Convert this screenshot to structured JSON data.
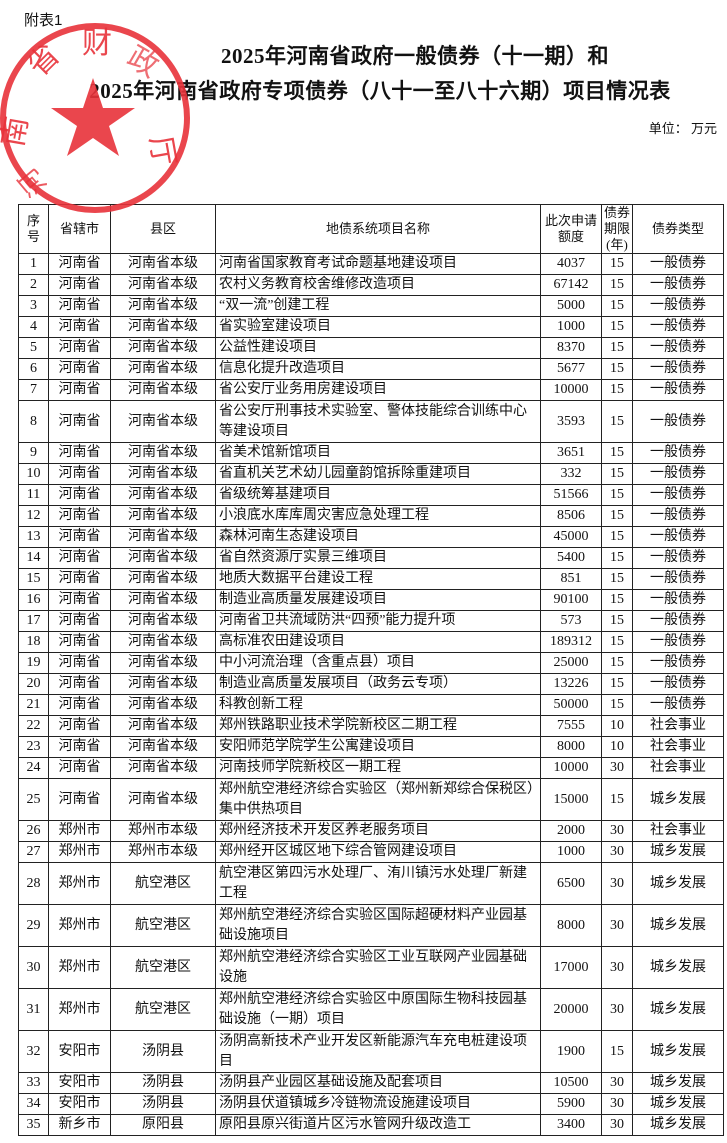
{
  "attachment_label": "附表1",
  "title_line1": "2025年河南省政府一般债券（十一期）和",
  "title_line2": "2025年河南省政府专项债券（八十一至八十六期）项目情况表",
  "unit": "单位：  万元",
  "stamp": {
    "text": "河南省财政厅",
    "color": "#e8323a"
  },
  "headers": [
    "序号",
    "省辖市",
    "县区",
    "地债系统项目名称",
    "此次申请额度",
    "债券期限(年)",
    "债券类型"
  ],
  "rows": [
    [
      "1",
      "河南省",
      "河南省本级",
      "河南省国家教育考试命题基地建设项目",
      "4037",
      "15",
      "一般债券"
    ],
    [
      "2",
      "河南省",
      "河南省本级",
      "农村义务教育校舍维修改造项目",
      "67142",
      "15",
      "一般债券"
    ],
    [
      "3",
      "河南省",
      "河南省本级",
      "“双一流”创建工程",
      "5000",
      "15",
      "一般债券"
    ],
    [
      "4",
      "河南省",
      "河南省本级",
      "省实验室建设项目",
      "1000",
      "15",
      "一般债券"
    ],
    [
      "5",
      "河南省",
      "河南省本级",
      "公益性建设项目",
      "8370",
      "15",
      "一般债券"
    ],
    [
      "6",
      "河南省",
      "河南省本级",
      "信息化提升改造项目",
      "5677",
      "15",
      "一般债券"
    ],
    [
      "7",
      "河南省",
      "河南省本级",
      "省公安厅业务用房建设项目",
      "10000",
      "15",
      "一般债券"
    ],
    [
      "8",
      "河南省",
      "河南省本级",
      "省公安厅刑事技术实验室、警体技能综合训练中心等建设项目",
      "3593",
      "15",
      "一般债券"
    ],
    [
      "9",
      "河南省",
      "河南省本级",
      "省美术馆新馆项目",
      "3651",
      "15",
      "一般债券"
    ],
    [
      "10",
      "河南省",
      "河南省本级",
      "省直机关艺术幼儿园童韵馆拆除重建项目",
      "332",
      "15",
      "一般债券"
    ],
    [
      "11",
      "河南省",
      "河南省本级",
      "省级统筹基建项目",
      "51566",
      "15",
      "一般债券"
    ],
    [
      "12",
      "河南省",
      "河南省本级",
      "小浪底水库库周灾害应急处理工程",
      "8506",
      "15",
      "一般债券"
    ],
    [
      "13",
      "河南省",
      "河南省本级",
      "森林河南生态建设项目",
      "45000",
      "15",
      "一般债券"
    ],
    [
      "14",
      "河南省",
      "河南省本级",
      "省自然资源厅实景三维项目",
      "5400",
      "15",
      "一般债券"
    ],
    [
      "15",
      "河南省",
      "河南省本级",
      "地质大数据平台建设工程",
      "851",
      "15",
      "一般债券"
    ],
    [
      "16",
      "河南省",
      "河南省本级",
      "制造业高质量发展建设项目",
      "90100",
      "15",
      "一般债券"
    ],
    [
      "17",
      "河南省",
      "河南省本级",
      "河南省卫共流域防洪“四预”能力提升项",
      "573",
      "15",
      "一般债券"
    ],
    [
      "18",
      "河南省",
      "河南省本级",
      "高标准农田建设项目",
      "189312",
      "15",
      "一般债券"
    ],
    [
      "19",
      "河南省",
      "河南省本级",
      "中小河流治理（含重点县）项目",
      "25000",
      "15",
      "一般债券"
    ],
    [
      "20",
      "河南省",
      "河南省本级",
      "制造业高质量发展项目（政务云专项）",
      "13226",
      "15",
      "一般债券"
    ],
    [
      "21",
      "河南省",
      "河南省本级",
      "科教创新工程",
      "50000",
      "15",
      "一般债券"
    ],
    [
      "22",
      "河南省",
      "河南省本级",
      "郑州铁路职业技术学院新校区二期工程",
      "7555",
      "10",
      "社会事业"
    ],
    [
      "23",
      "河南省",
      "河南省本级",
      "安阳师范学院学生公寓建设项目",
      "8000",
      "10",
      "社会事业"
    ],
    [
      "24",
      "河南省",
      "河南省本级",
      "河南技师学院新校区一期工程",
      "10000",
      "30",
      "社会事业"
    ],
    [
      "25",
      "河南省",
      "河南省本级",
      "郑州航空港经济综合实验区（郑州新郑综合保税区）集中供热项目",
      "15000",
      "15",
      "城乡发展"
    ],
    [
      "26",
      "郑州市",
      "郑州市本级",
      "郑州经济技术开发区养老服务项目",
      "2000",
      "30",
      "社会事业"
    ],
    [
      "27",
      "郑州市",
      "郑州市本级",
      "郑州经开区城区地下综合管网建设项目",
      "1000",
      "30",
      "城乡发展"
    ],
    [
      "28",
      "郑州市",
      "航空港区",
      "航空港区第四污水处理厂、洧川镇污水处理厂新建工程",
      "6500",
      "30",
      "城乡发展"
    ],
    [
      "29",
      "郑州市",
      "航空港区",
      "郑州航空港经济综合实验区国际超硬材料产业园基础设施项目",
      "8000",
      "30",
      "城乡发展"
    ],
    [
      "30",
      "郑州市",
      "航空港区",
      "郑州航空港经济综合实验区工业互联网产业园基础设施",
      "17000",
      "30",
      "城乡发展"
    ],
    [
      "31",
      "郑州市",
      "航空港区",
      "郑州航空港经济综合实验区中原国际生物科技园基础设施（一期）项目",
      "20000",
      "30",
      "城乡发展"
    ],
    [
      "32",
      "安阳市",
      "汤阴县",
      "汤阴高新技术产业开发区新能源汽车充电桩建设项目",
      "1900",
      "15",
      "城乡发展"
    ],
    [
      "33",
      "安阳市",
      "汤阴县",
      "汤阴县产业园区基础设施及配套项目",
      "10500",
      "30",
      "城乡发展"
    ],
    [
      "34",
      "安阳市",
      "汤阴县",
      "汤阴县伏道镇城乡冷链物流设施建设项目",
      "5900",
      "30",
      "城乡发展"
    ],
    [
      "35",
      "新乡市",
      "原阳县",
      "原阳县原兴街道片区污水管网升级改造工",
      "3400",
      "30",
      "城乡发展"
    ]
  ]
}
